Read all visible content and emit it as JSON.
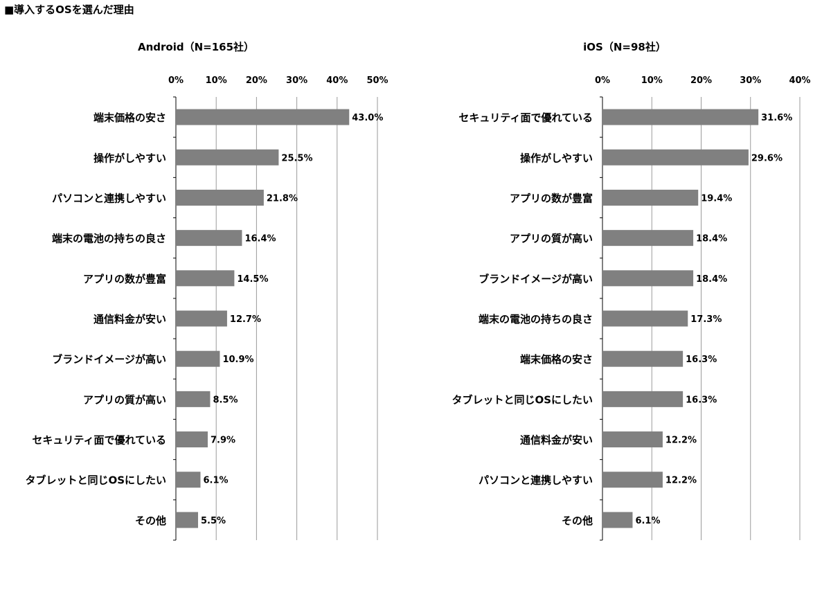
{
  "page_title": "■導入するOSを選んだ理由",
  "chart_data": [
    {
      "type": "bar",
      "orientation": "horizontal",
      "title": "Android（N=165社）",
      "xlim": [
        0,
        50
      ],
      "ticks": [
        "0%",
        "10%",
        "20%",
        "30%",
        "40%",
        "50%"
      ],
      "tick_values": [
        0,
        10,
        20,
        30,
        40,
        50
      ],
      "grid": true,
      "bar_color": "#808080",
      "categories": [
        "端末価格の安さ",
        "操作がしやすい",
        "パソコンと連携しやすい",
        "端末の電池の持ちの良さ",
        "アプリの数が豊富",
        "通信料金が安い",
        "ブランドイメージが高い",
        "アプリの質が高い",
        "セキュリティ面で優れている",
        "タブレットと同じOSにしたい",
        "その他"
      ],
      "values": [
        43.0,
        25.5,
        21.8,
        16.4,
        14.5,
        12.7,
        10.9,
        8.5,
        7.9,
        6.1,
        5.5
      ],
      "data_labels": [
        "43.0%",
        "25.5%",
        "21.8%",
        "16.4%",
        "14.5%",
        "12.7%",
        "10.9%",
        "8.5%",
        "7.9%",
        "6.1%",
        "5.5%"
      ]
    },
    {
      "type": "bar",
      "orientation": "horizontal",
      "title": "iOS（N=98社）",
      "xlim": [
        0,
        40
      ],
      "ticks": [
        "0%",
        "10%",
        "20%",
        "30%",
        "40%"
      ],
      "tick_values": [
        0,
        10,
        20,
        30,
        40
      ],
      "grid": true,
      "bar_color": "#808080",
      "categories": [
        "セキュリティ面で優れている",
        "操作がしやすい",
        "アプリの数が豊富",
        "アプリの質が高い",
        "ブランドイメージが高い",
        "端末の電池の持ちの良さ",
        "端末価格の安さ",
        "タブレットと同じOSにしたい",
        "通信料金が安い",
        "パソコンと連携しやすい",
        "その他"
      ],
      "values": [
        31.6,
        29.6,
        19.4,
        18.4,
        18.4,
        17.3,
        16.3,
        16.3,
        12.2,
        12.2,
        6.1
      ],
      "data_labels": [
        "31.6%",
        "29.6%",
        "19.4%",
        "18.4%",
        "18.4%",
        "17.3%",
        "16.3%",
        "16.3%",
        "12.2%",
        "12.2%",
        "6.1%"
      ]
    }
  ]
}
